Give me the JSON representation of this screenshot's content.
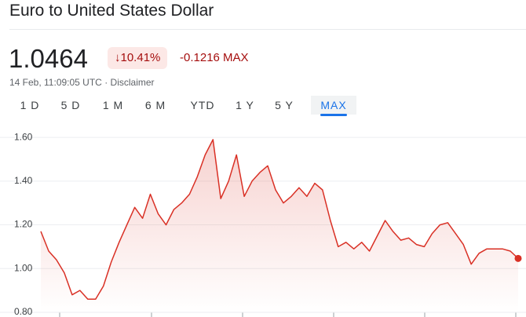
{
  "header": {
    "title": "Euro to United States Dollar"
  },
  "quote": {
    "price": "1.0464",
    "change_pct": "10.41%",
    "change_abs": "-0.1216",
    "period": "MAX",
    "timestamp": "14 Feb, 11:09:05 UTC",
    "separator": "·",
    "disclaimer": "Disclaimer"
  },
  "tabs": {
    "items": [
      "1 D",
      "5 D",
      "1 M",
      "6 M",
      "YTD",
      "1 Y",
      "5 Y",
      "MAX"
    ],
    "selected": 7
  },
  "chart_data": {
    "type": "line",
    "color": "#d93025",
    "values": [
      1.17,
      1.08,
      1.04,
      0.98,
      0.88,
      0.9,
      0.86,
      0.86,
      0.92,
      1.03,
      1.12,
      1.2,
      1.28,
      1.23,
      1.34,
      1.25,
      1.2,
      1.27,
      1.3,
      1.34,
      1.42,
      1.52,
      1.59,
      1.32,
      1.4,
      1.52,
      1.33,
      1.4,
      1.44,
      1.47,
      1.36,
      1.3,
      1.33,
      1.37,
      1.33,
      1.39,
      1.36,
      1.22,
      1.1,
      1.12,
      1.09,
      1.12,
      1.08,
      1.15,
      1.22,
      1.17,
      1.13,
      1.14,
      1.11,
      1.1,
      1.16,
      1.2,
      1.21,
      1.16,
      1.11,
      1.02,
      1.07,
      1.09,
      1.09,
      1.09,
      1.08,
      1.0464
    ],
    "ylim": [
      0.8,
      1.665
    ],
    "yticks": [
      {
        "value": 0.8,
        "label": "0.80"
      },
      {
        "value": 1.0,
        "label": "1.00"
      },
      {
        "value": 1.2,
        "label": "1.20"
      },
      {
        "value": 1.4,
        "label": "1.40"
      },
      {
        "value": 1.6,
        "label": "1.60"
      }
    ],
    "grid": true
  }
}
